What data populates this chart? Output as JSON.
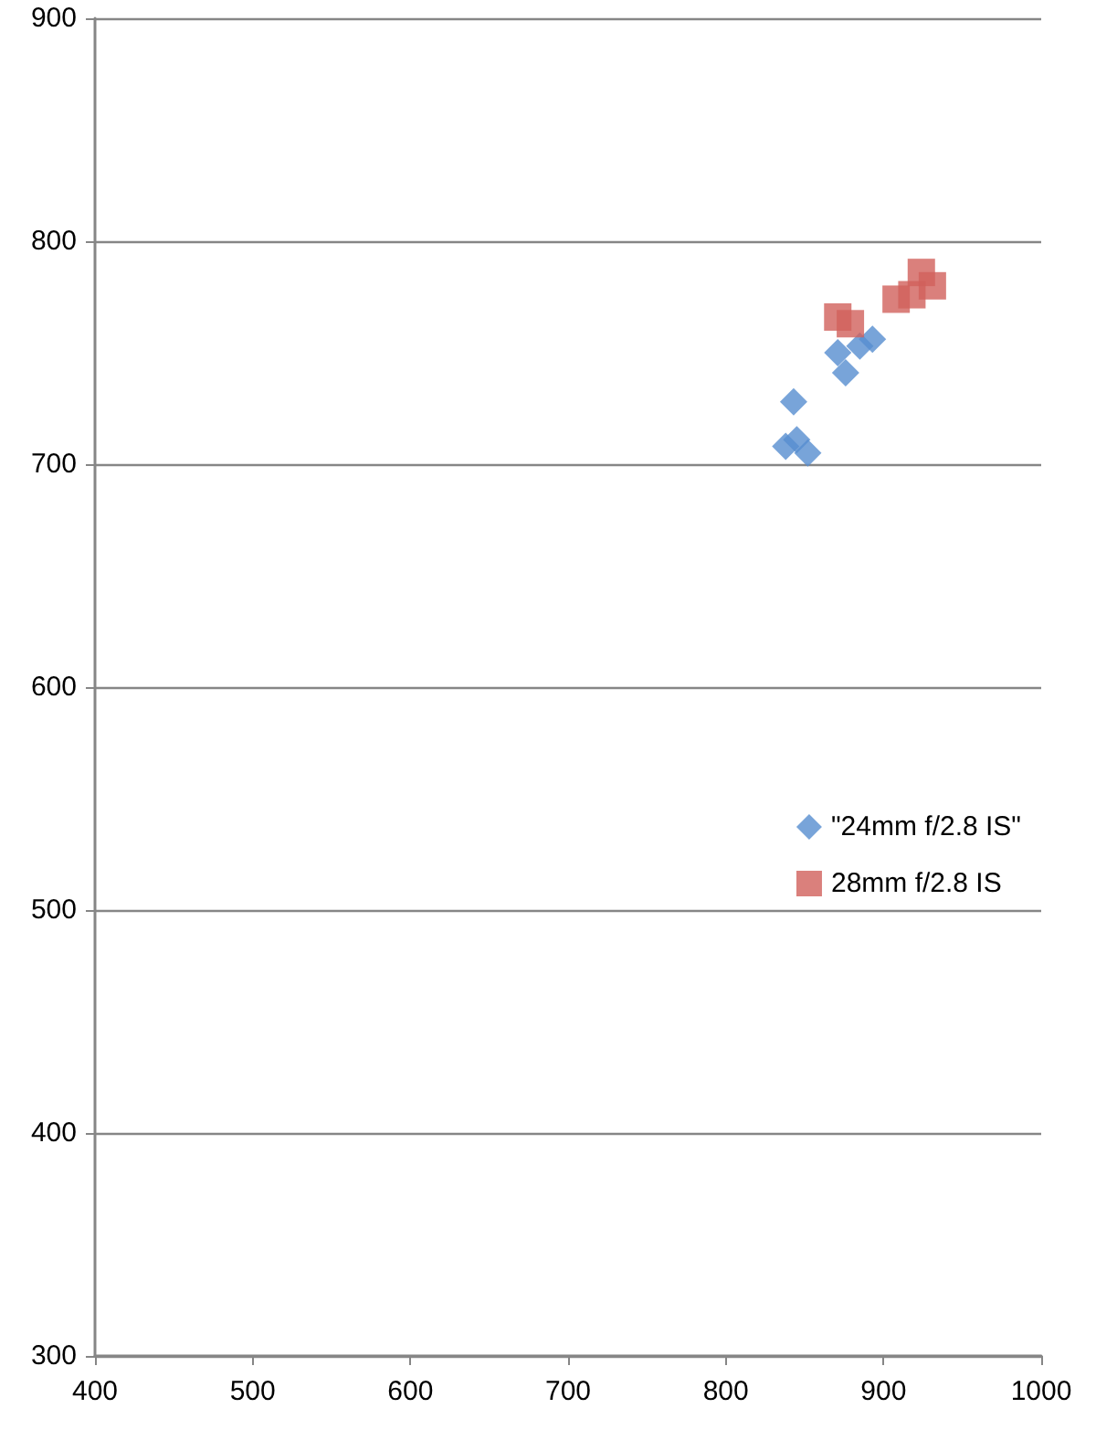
{
  "chart_data": {
    "type": "scatter",
    "series": [
      {
        "name": "\"24mm f/2.8 IS\"",
        "color": "#568dcf",
        "marker": "diamond",
        "x": [
          843,
          838,
          845,
          852,
          871,
          876,
          885,
          893
        ],
        "values": [
          728,
          708,
          711,
          705,
          750,
          741,
          753,
          756
        ]
      },
      {
        "name": "28mm f/2.8 IS",
        "color": "#d1605b",
        "marker": "square",
        "x": [
          871,
          879,
          908,
          918,
          924,
          931
        ],
        "values": [
          766,
          763,
          774,
          776,
          786,
          780
        ]
      }
    ],
    "xlim": [
      400,
      1000
    ],
    "xticks": [
      400,
      500,
      600,
      700,
      800,
      900,
      1000
    ],
    "ylim": [
      300,
      900
    ],
    "yticks": [
      300,
      400,
      500,
      600,
      700,
      800,
      900
    ],
    "grid": "y",
    "legend": "right"
  }
}
